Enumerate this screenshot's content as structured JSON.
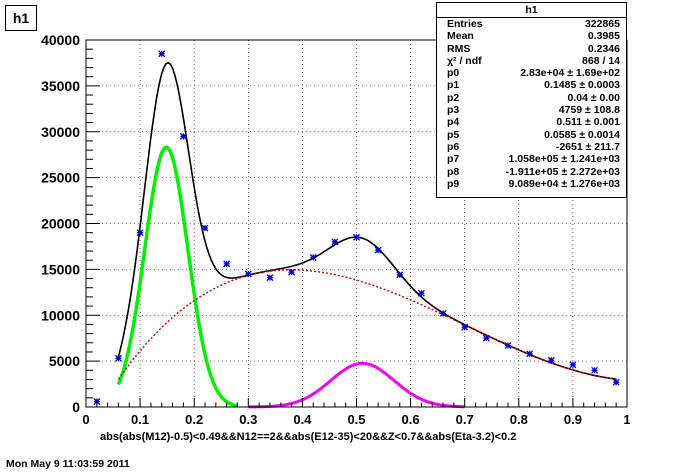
{
  "hist_title": "h1",
  "timestamp": "Mon May  9 11:03:59 2011",
  "stats": {
    "title": "h1",
    "rows": [
      {
        "label": "Entries",
        "value": "322865"
      },
      {
        "label": "Mean",
        "value": "0.3985"
      },
      {
        "label": "RMS",
        "value": "0.2346"
      },
      {
        "label": "χ² / ndf",
        "value": "868 / 14"
      },
      {
        "label": "p0",
        "value": "2.83e+04 ± 1.69e+02"
      },
      {
        "label": "p1",
        "value": "0.1485 ± 0.0003"
      },
      {
        "label": "p2",
        "value": "0.04 ± 0.00"
      },
      {
        "label": "p3",
        "value": "4759 ± 108.8"
      },
      {
        "label": "p4",
        "value": "0.511 ± 0.001"
      },
      {
        "label": "p5",
        "value": "0.0585 ± 0.0014"
      },
      {
        "label": "p6",
        "value": "-2651 ± 211.7"
      },
      {
        "label": "p7",
        "value": "1.058e+05 ± 1.241e+03"
      },
      {
        "label": "p8",
        "value": "-1.911e+05 ± 2.272e+03"
      },
      {
        "label": "p9",
        "value": "9.089e+04 ± 1.276e+03"
      }
    ]
  },
  "chart_data": {
    "type": "scatter",
    "title": "h1",
    "xlabel": "abs(abs(M12)-0.5)<0.49&&N12==2&&abs(E12-35)<20&&Z<0.7&&abs(Eta-3.2)<0.2",
    "ylabel": "",
    "xlim": [
      0,
      1
    ],
    "ylim": [
      0,
      40000
    ],
    "x_ticks": [
      0,
      0.1,
      0.2,
      0.3,
      0.4,
      0.5,
      0.6,
      0.7,
      0.8,
      0.9,
      1
    ],
    "x_tick_labels": [
      "0",
      "0.1",
      "0.2",
      "0.3",
      "0.4",
      "0.5",
      "0.6",
      "0.7",
      "0.8",
      "0.9",
      "1"
    ],
    "y_ticks": [
      0,
      5000,
      10000,
      15000,
      20000,
      25000,
      30000,
      35000,
      40000
    ],
    "y_tick_labels": [
      "0",
      "5000",
      "10000",
      "15000",
      "20000",
      "25000",
      "30000",
      "35000",
      "40000"
    ],
    "grid": true,
    "points": {
      "x": [
        0.02,
        0.06,
        0.1,
        0.14,
        0.18,
        0.22,
        0.26,
        0.3,
        0.34,
        0.38,
        0.42,
        0.46,
        0.5,
        0.54,
        0.58,
        0.62,
        0.66,
        0.7,
        0.74,
        0.78,
        0.82,
        0.86,
        0.9,
        0.94,
        0.98
      ],
      "y": [
        600,
        5300,
        19000,
        38500,
        29500,
        19500,
        15600,
        14500,
        14100,
        14700,
        16300,
        18000,
        18500,
        17100,
        14400,
        12400,
        10200,
        8700,
        7500,
        6700,
        5800,
        5100,
        4600,
        4000,
        2700
      ],
      "color": "#0000cc"
    },
    "curves": [
      {
        "role": "total fit",
        "color": "#000000",
        "style": "solid",
        "range": [
          0.06,
          0.98
        ]
      },
      {
        "role": "peak 1",
        "color": "#00ee00",
        "style": "solid",
        "range": [
          0.06,
          0.28
        ],
        "params": {
          "amplitude": 28300,
          "mean": 0.1485,
          "sigma": 0.04
        }
      },
      {
        "role": "peak 2",
        "color": "#ee00ee",
        "style": "solid",
        "range": [
          0.3,
          0.7
        ],
        "params": {
          "amplitude": 4759,
          "mean": 0.511,
          "sigma": 0.0585
        }
      },
      {
        "role": "background",
        "color": "#cc0000",
        "style": "dotted",
        "range": [
          0.06,
          0.98
        ],
        "params": {
          "p6": -2651,
          "p7": 105800,
          "p8": -191100,
          "p9": 90890
        }
      }
    ]
  }
}
